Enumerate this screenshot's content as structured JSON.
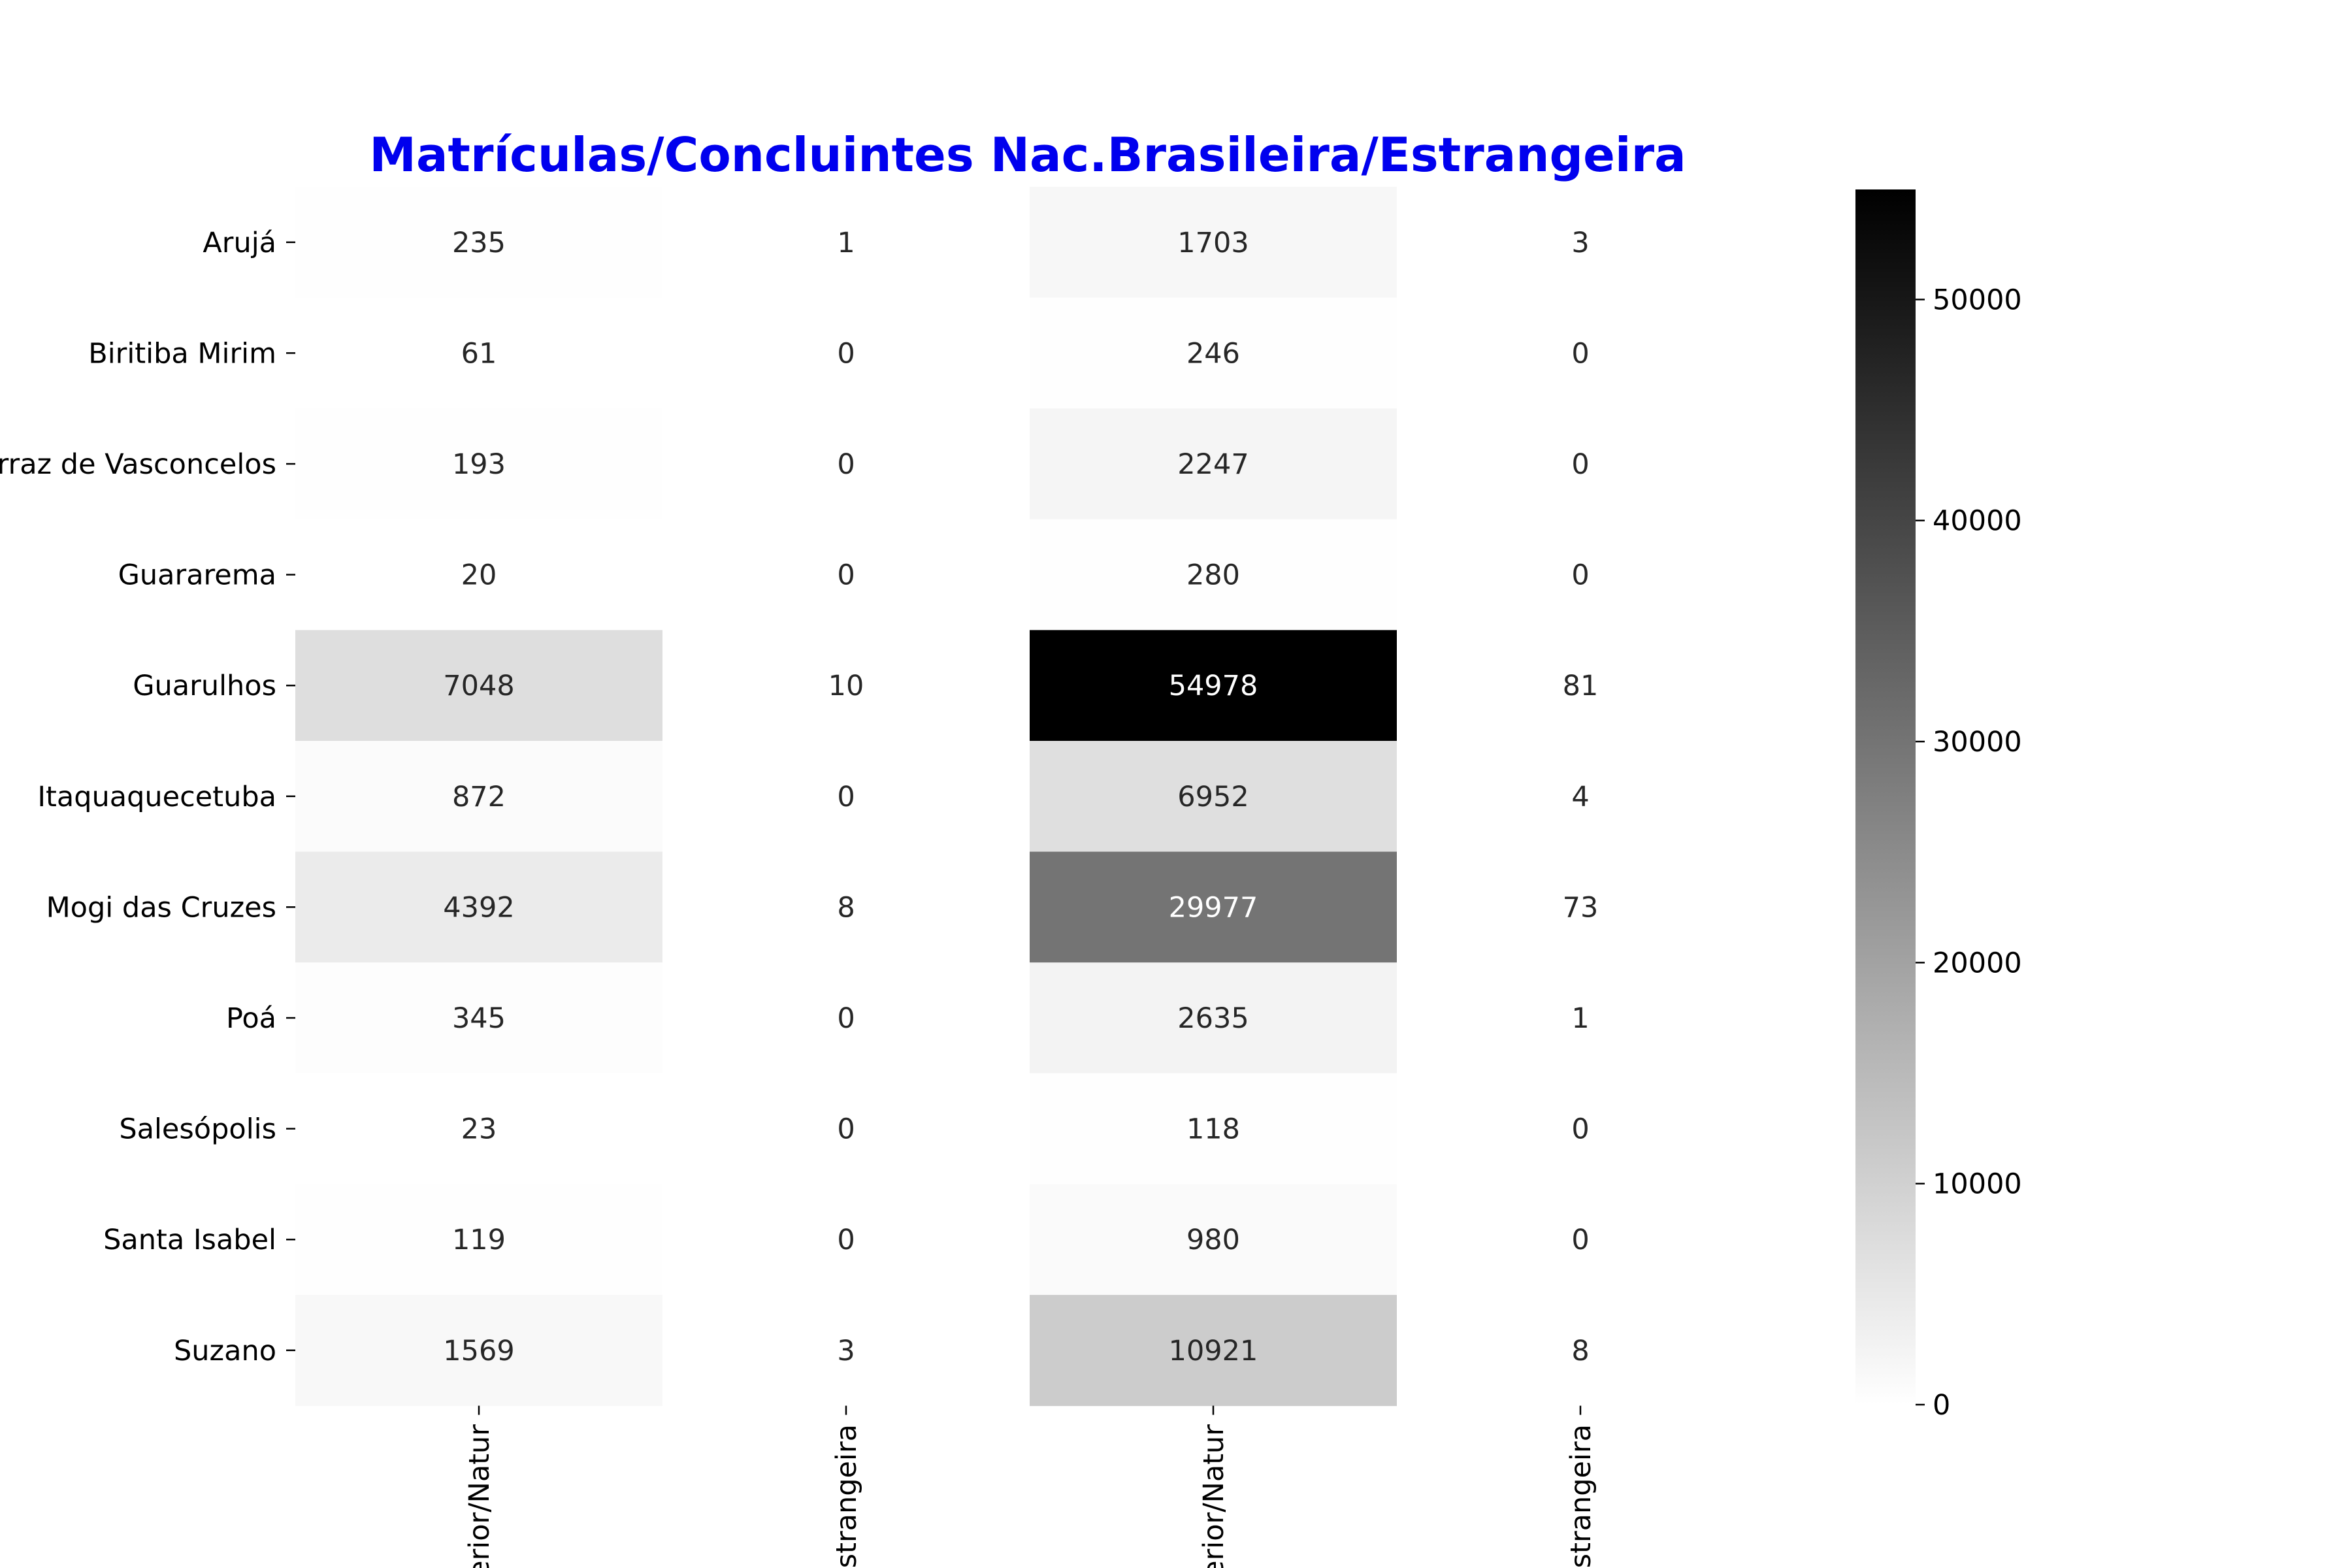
{
  "chart_data": {
    "type": "heatmap",
    "title": "Matrículas/Concluintes Nac.Brasileira/Estrangeira",
    "title_color": "#0000ee",
    "colormap": "Greys",
    "colormap_colors": [
      "#ffffff",
      "#000000"
    ],
    "rows": [
      "Arujá",
      "Biritiba Mirim",
      "Ferraz de Vasconcelos",
      "Guararema",
      "Guarulhos",
      "Itaquaquecetuba",
      "Mogi das Cruzes",
      "Poá",
      "Salesópolis",
      "Santa Isabel",
      "Suzano"
    ],
    "rows_displayed": [
      "Arujá",
      "Biritiba Mirim",
      "erraz de Vasconcelos",
      "Guararema",
      "Guarulhos",
      "Itaquaquecetuba",
      "Mogi das Cruzes",
      "Poá",
      "Salesópolis",
      "Santa Isabel",
      "Suzano"
    ],
    "columns_displayed": [
      "terior/Natur",
      "Estrangeira",
      "terior/Natur",
      "Estrangeira"
    ],
    "values": [
      [
        235,
        1,
        1703,
        3
      ],
      [
        61,
        0,
        246,
        0
      ],
      [
        193,
        0,
        2247,
        0
      ],
      [
        20,
        0,
        280,
        0
      ],
      [
        7048,
        10,
        54978,
        81
      ],
      [
        872,
        0,
        6952,
        4
      ],
      [
        4392,
        8,
        29977,
        73
      ],
      [
        345,
        0,
        2635,
        1
      ],
      [
        23,
        0,
        118,
        0
      ],
      [
        119,
        0,
        980,
        0
      ],
      [
        1569,
        3,
        10921,
        8
      ]
    ],
    "value_range": [
      0,
      54978
    ],
    "colorbar": {
      "ticks": [
        0,
        10000,
        20000,
        30000,
        40000,
        50000
      ]
    },
    "grid": false,
    "legend": "colorbar-right"
  }
}
